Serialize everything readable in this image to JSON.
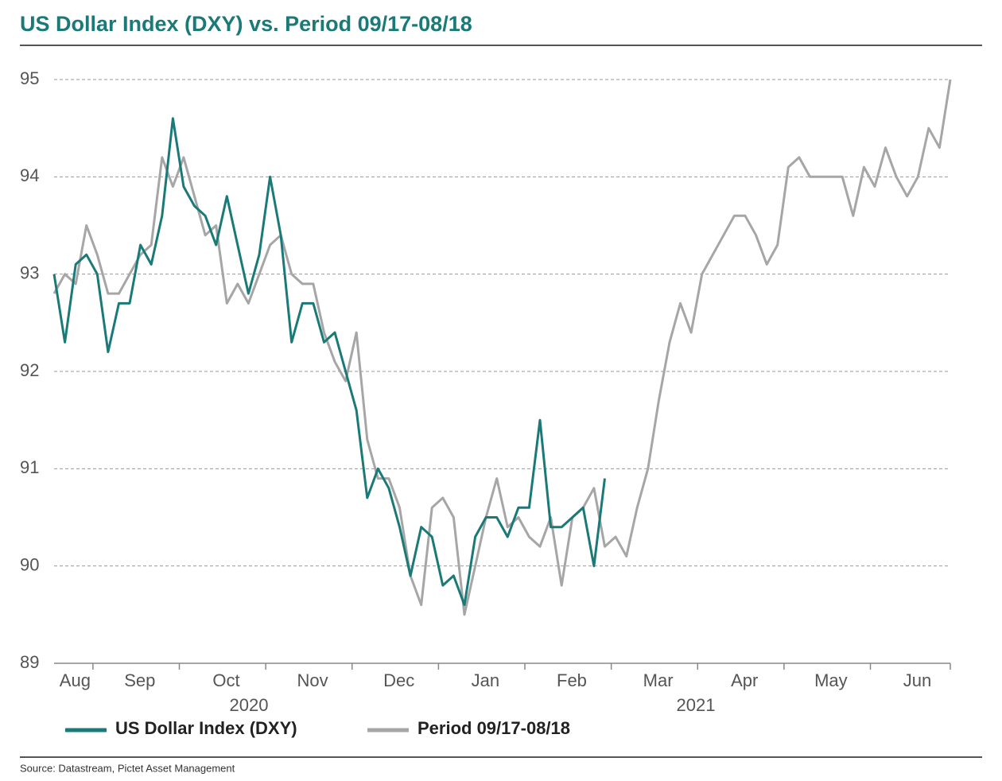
{
  "chart_data": {
    "type": "line",
    "title": "US Dollar Index (DXY) vs. Period 09/17-08/18",
    "source": "Source: Datastream, Pictet Asset Management",
    "categories": [
      "Aug",
      null,
      null,
      null,
      "Sep",
      null,
      null,
      null,
      null,
      null,
      null,
      null,
      "Oct",
      null,
      null,
      null,
      null,
      null,
      null,
      null,
      "Nov",
      null,
      null,
      null,
      null,
      null,
      null,
      null,
      "Dec",
      null,
      null,
      null,
      null,
      null,
      null,
      null,
      "Jan",
      null,
      null,
      null,
      null,
      null,
      null,
      null,
      "Feb",
      null,
      null,
      null,
      null,
      null,
      null,
      null,
      "Mar",
      null,
      null,
      null,
      null,
      null,
      null,
      null,
      "Apr",
      null,
      null,
      null,
      null,
      null,
      null,
      null,
      "May",
      null,
      null,
      null,
      null,
      null,
      null,
      null,
      "Jun",
      null,
      null,
      null,
      null,
      null,
      null,
      null
    ],
    "x_group_labels": [
      "2020",
      "2021"
    ],
    "ylim": [
      89,
      95
    ],
    "yticks": [
      89,
      90,
      91,
      92,
      93,
      94,
      95
    ],
    "grid": true,
    "series": [
      {
        "name": "US Dollar Index (DXY)",
        "color": "#1a7a77",
        "values": [
          93.0,
          92.3,
          93.1,
          93.2,
          93.0,
          92.2,
          92.7,
          92.7,
          93.3,
          93.1,
          93.6,
          94.6,
          93.9,
          93.7,
          93.6,
          93.3,
          93.8,
          93.3,
          92.8,
          93.2,
          94.0,
          93.4,
          92.3,
          92.7,
          92.7,
          92.3,
          92.4,
          92.0,
          91.6,
          90.7,
          91.0,
          90.8,
          90.4,
          89.9,
          90.4,
          90.3,
          89.8,
          89.9,
          89.6,
          90.3,
          90.5,
          90.5,
          90.3,
          90.6,
          90.6,
          91.5,
          90.4,
          90.4,
          90.5,
          90.6,
          90.0,
          90.9,
          null,
          null,
          null,
          null,
          null,
          null,
          null,
          null,
          null,
          null,
          null,
          null,
          null,
          null,
          null,
          null,
          null,
          null,
          null,
          null,
          null,
          null,
          null,
          null,
          null,
          null,
          null,
          null,
          null,
          null,
          null,
          null
        ]
      },
      {
        "name": "Period 09/17-08/18",
        "color": "#a6a6a6",
        "values": [
          92.8,
          93.0,
          92.9,
          93.5,
          93.2,
          92.8,
          92.8,
          93.0,
          93.2,
          93.3,
          94.2,
          93.9,
          94.2,
          93.8,
          93.4,
          93.5,
          92.7,
          92.9,
          92.7,
          93.0,
          93.3,
          93.4,
          93.0,
          92.9,
          92.9,
          92.4,
          92.1,
          91.9,
          92.4,
          91.3,
          90.9,
          90.9,
          90.6,
          89.9,
          89.6,
          90.6,
          90.7,
          90.5,
          89.5,
          90.0,
          90.5,
          90.9,
          90.4,
          90.5,
          90.3,
          90.2,
          90.5,
          89.8,
          90.5,
          90.6,
          90.8,
          90.2,
          90.3,
          90.1,
          90.6,
          91.0,
          91.7,
          92.3,
          92.7,
          92.4,
          93.0,
          93.2,
          93.4,
          93.6,
          93.6,
          93.4,
          93.1,
          93.3,
          94.1,
          94.2,
          94.0,
          94.0,
          94.0,
          94.0,
          93.6,
          94.1,
          93.9,
          94.3,
          94.0,
          93.8,
          94.0,
          94.5,
          94.3,
          95.0
        ]
      }
    ]
  }
}
